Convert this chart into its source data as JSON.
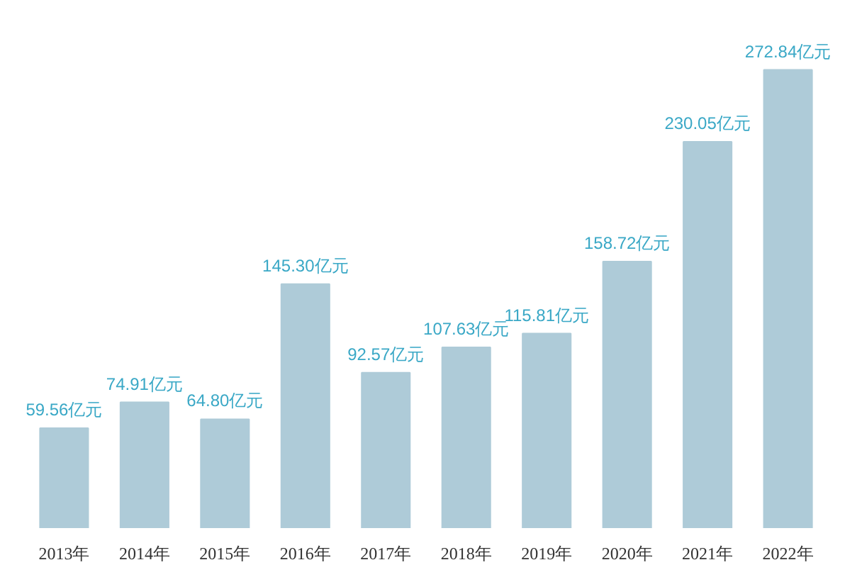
{
  "chart_data": {
    "type": "bar",
    "categories": [
      "2013年",
      "2014年",
      "2015年",
      "2016年",
      "2017年",
      "2018年",
      "2019年",
      "2020年",
      "2021年",
      "2022年"
    ],
    "values": [
      59.56,
      74.91,
      64.8,
      145.3,
      92.57,
      107.63,
      115.81,
      158.72,
      230.05,
      272.84
    ],
    "value_labels": [
      "59.56亿元",
      "74.91亿元",
      "64.80亿元",
      "145.30亿元",
      "92.57亿元",
      "107.63亿元",
      "115.81亿元",
      "158.72亿元",
      "230.05亿元",
      "272.84亿元"
    ],
    "color": "#aecbd8",
    "grid": false
  }
}
